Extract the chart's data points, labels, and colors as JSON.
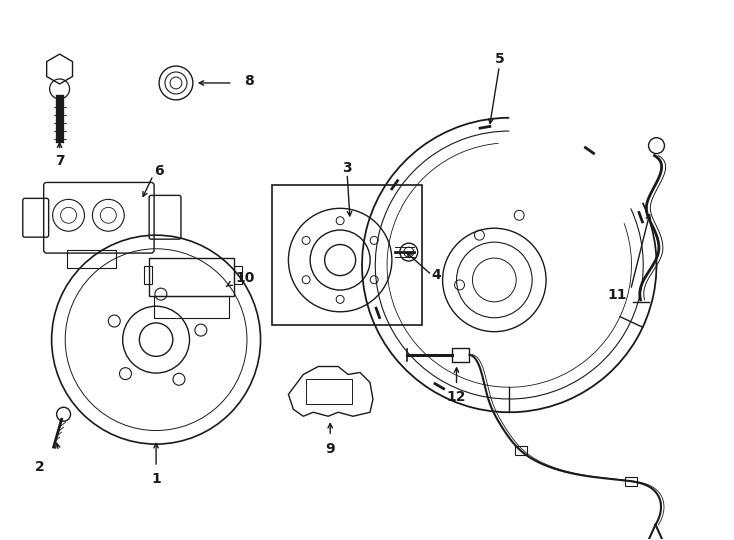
{
  "bg_color": "#ffffff",
  "line_color": "#1a1a1a",
  "lw": 1.0,
  "fig_width": 7.34,
  "fig_height": 5.4
}
